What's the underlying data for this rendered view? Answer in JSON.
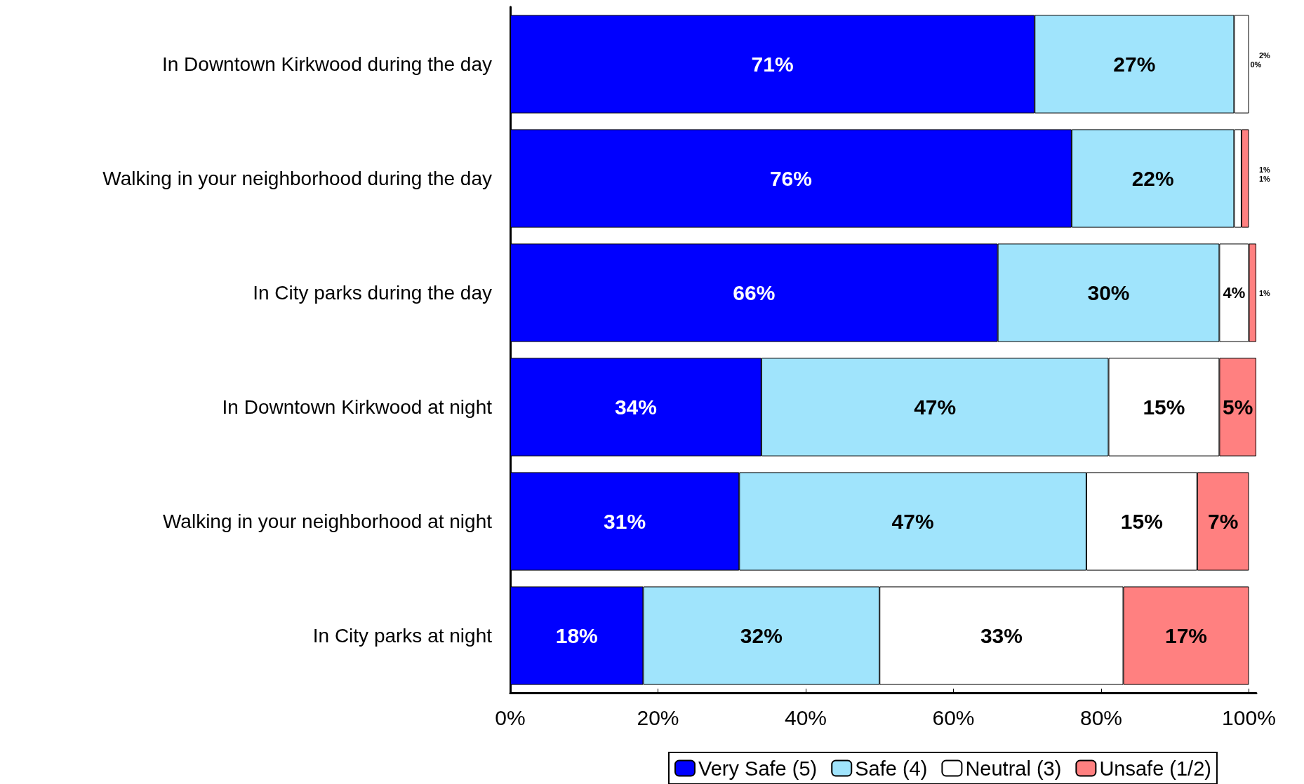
{
  "chart_data": {
    "type": "bar",
    "orientation": "horizontal",
    "stacked": true,
    "categories": [
      "In Downtown Kirkwood during the day",
      "Walking in your neighborhood during the day",
      "In City parks during the day",
      "In Downtown Kirkwood at night",
      "Walking in your neighborhood at night",
      "In City parks at night"
    ],
    "series": [
      {
        "name": "Very Safe (5)",
        "color": "#0000ff",
        "values": [
          71,
          76,
          66,
          34,
          31,
          18
        ],
        "value_labels": [
          "71%",
          "76%",
          "66%",
          "34%",
          "31%",
          "18%"
        ]
      },
      {
        "name": "Safe (4)",
        "color": "#a0e4fc",
        "values": [
          27,
          22,
          30,
          47,
          47,
          32
        ],
        "value_labels": [
          "27%",
          "22%",
          "30%",
          "47%",
          "47%",
          "32%"
        ]
      },
      {
        "name": "Neutral (3)",
        "color": "#ffffff",
        "values": [
          2,
          1,
          4,
          15,
          15,
          33
        ],
        "value_labels": [
          "2%",
          "1%",
          "4%",
          "15%",
          "15%",
          "33%"
        ]
      },
      {
        "name": "Unsafe (1/2)",
        "color": "#ff8080",
        "values": [
          0,
          1,
          1,
          5,
          7,
          17
        ],
        "value_labels": [
          "0%",
          "1%",
          "1%",
          "5%",
          "7%",
          "17%"
        ]
      }
    ],
    "xlim": [
      0,
      101
    ],
    "xticks": [
      {
        "value": 0,
        "label": "0%"
      },
      {
        "value": 20,
        "label": "20%"
      },
      {
        "value": 40,
        "label": "40%"
      },
      {
        "value": 60,
        "label": "60%"
      },
      {
        "value": 80,
        "label": "80%"
      },
      {
        "value": 100,
        "label": "100%"
      }
    ],
    "grid": false,
    "legend": "bottom"
  }
}
